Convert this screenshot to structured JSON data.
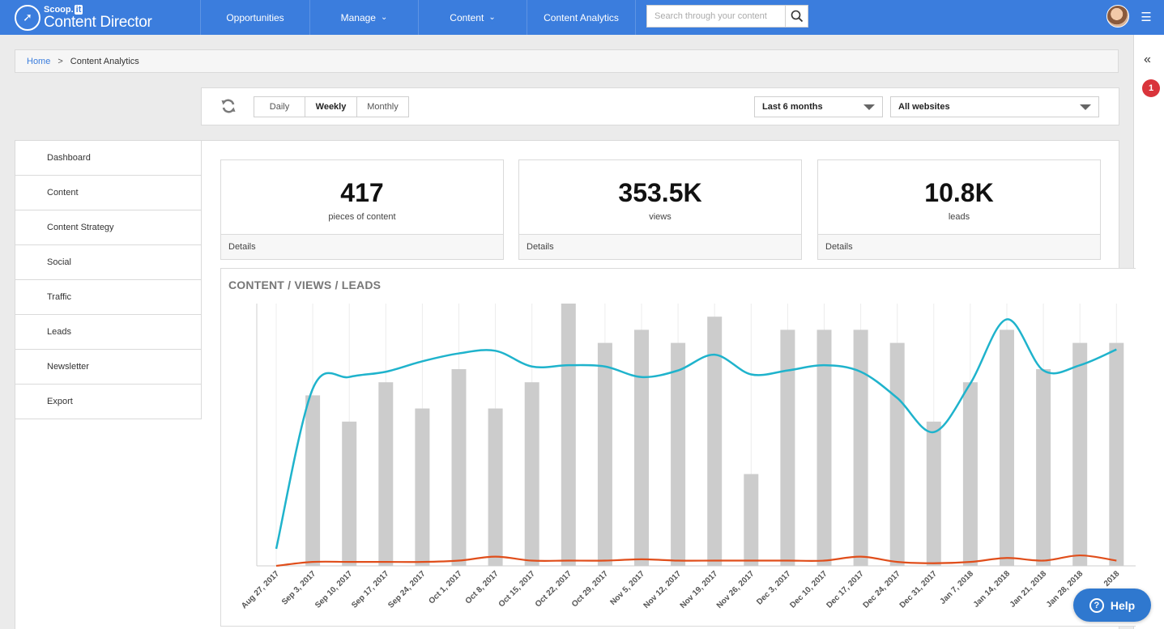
{
  "header": {
    "brand": "Scoop.",
    "brand_it": "it",
    "product": "Content Director",
    "nav": [
      {
        "label": "Opportunities",
        "chevron": false
      },
      {
        "label": "Manage",
        "chevron": true
      },
      {
        "label": "Content",
        "chevron": true
      },
      {
        "label": "Content Analytics",
        "chevron": false
      }
    ],
    "search_placeholder": "Search through your content",
    "search_icon": "magnifier-icon",
    "menu_icon": "hamburger-icon",
    "brand_color": "#3b7ddd"
  },
  "rail": {
    "collapse_icon": "double-chevron-left-icon",
    "notification_count": "1"
  },
  "breadcrumb": {
    "home": "Home",
    "separator": ">",
    "current": "Content Analytics"
  },
  "toolbar": {
    "refresh_icon": "refresh-icon",
    "periods": [
      "Daily",
      "Weekly",
      "Monthly"
    ],
    "active_period": "Weekly",
    "range": "Last 6 months",
    "website": "All websites"
  },
  "sidebar": {
    "items": [
      "Dashboard",
      "Content",
      "Content Strategy",
      "Social",
      "Traffic",
      "Leads",
      "Newsletter",
      "Export"
    ]
  },
  "cards": [
    {
      "value": "417",
      "label": "pieces of content",
      "details": "Details"
    },
    {
      "value": "353.5K",
      "label": "views",
      "details": "Details"
    },
    {
      "value": "10.8K",
      "label": "leads",
      "details": "Details"
    }
  ],
  "chart_data": {
    "type": "bar",
    "title": "CONTENT / VIEWS / LEADS",
    "categories": [
      "Aug 27, 2017",
      "Sep 3, 2017",
      "Sep 10, 2017",
      "Sep 17, 2017",
      "Sep 24, 2017",
      "Oct 1, 2017",
      "Oct 8, 2017",
      "Oct 15, 2017",
      "Oct 22, 2017",
      "Oct 29, 2017",
      "Nov 5, 2017",
      "Nov 12, 2017",
      "Nov 19, 2017",
      "Nov 26, 2017",
      "Dec 3, 2017",
      "Dec 10, 2017",
      "Dec 17, 2017",
      "Dec 24, 2017",
      "Dec 31, 2017",
      "Jan 7, 2018",
      "Jan 14, 2018",
      "Jan 21, 2018",
      "Jan 28, 2018",
      "2018"
    ],
    "series": [
      {
        "kind": "bar",
        "color": "#cccccc",
        "values": [
          0,
          13,
          11,
          14,
          12,
          15,
          12,
          14,
          20,
          17,
          18,
          17,
          19,
          7,
          18,
          18,
          18,
          17,
          11,
          14,
          18,
          15,
          17,
          17
        ]
      },
      {
        "kind": "line",
        "color": "#1fb3cc",
        "values": [
          1.3,
          13.5,
          14.4,
          14.8,
          15.6,
          16.2,
          16.4,
          15.2,
          15.3,
          15.2,
          14.4,
          14.9,
          16.1,
          14.6,
          14.9,
          15.3,
          14.8,
          12.8,
          10.2,
          13.9,
          18.8,
          14.9,
          15.3,
          16.5
        ]
      },
      {
        "kind": "line",
        "color": "#e04e1b",
        "values": [
          0,
          0.3,
          0.3,
          0.3,
          0.3,
          0.4,
          0.7,
          0.4,
          0.4,
          0.4,
          0.5,
          0.4,
          0.4,
          0.4,
          0.4,
          0.4,
          0.7,
          0.3,
          0.2,
          0.3,
          0.6,
          0.4,
          0.8,
          0.4
        ]
      }
    ],
    "ylim": [
      0,
      20
    ],
    "grid": "vertical"
  },
  "help": {
    "label": "Help",
    "icon": "question-circle-icon"
  }
}
